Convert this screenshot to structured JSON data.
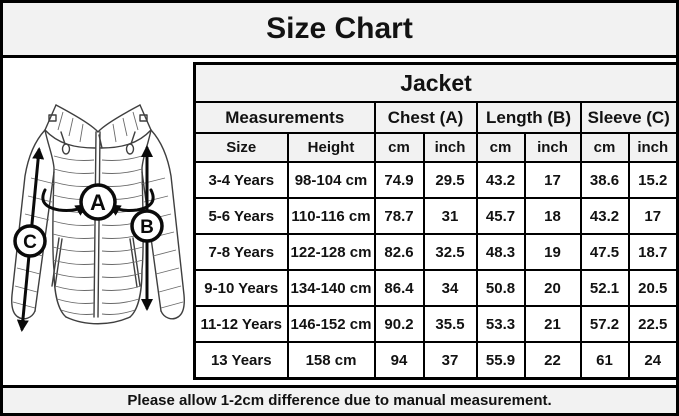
{
  "title": "Size Chart",
  "footer_note": "Please allow 1-2cm difference due to manual measurement.",
  "diagram": {
    "labels": {
      "chest": "A",
      "length": "B",
      "sleeve": "C"
    }
  },
  "chart_data": {
    "type": "table",
    "title": "Jacket",
    "group_headers": [
      {
        "label": "Measurements",
        "span": 2
      },
      {
        "label": "Chest (A)",
        "span": 2
      },
      {
        "label": "Length (B)",
        "span": 2
      },
      {
        "label": "Sleeve (C)",
        "span": 2
      }
    ],
    "sub_headers": [
      "Size",
      "Height",
      "cm",
      "inch",
      "cm",
      "inch",
      "cm",
      "inch"
    ],
    "rows": [
      [
        "3-4 Years",
        "98-104 cm",
        "74.9",
        "29.5",
        "43.2",
        "17",
        "38.6",
        "15.2"
      ],
      [
        "5-6 Years",
        "110-116 cm",
        "78.7",
        "31",
        "45.7",
        "18",
        "43.2",
        "17"
      ],
      [
        "7-8 Years",
        "122-128 cm",
        "82.6",
        "32.5",
        "48.3",
        "19",
        "47.5",
        "18.7"
      ],
      [
        "9-10 Years",
        "134-140 cm",
        "86.4",
        "34",
        "50.8",
        "20",
        "52.1",
        "20.5"
      ],
      [
        "11-12 Years",
        "146-152 cm",
        "90.2",
        "35.5",
        "53.3",
        "21",
        "57.2",
        "22.5"
      ],
      [
        "13 Years",
        "158 cm",
        "94",
        "37",
        "55.9",
        "22",
        "61",
        "24"
      ]
    ]
  },
  "colors": {
    "band_bg": "#f2f2f2",
    "header_cell_bg": "#f2f2f2",
    "cell_bg": "#ffffff",
    "border": "#000000",
    "text": "#121212",
    "sketch_line": "#3f3f3f"
  }
}
